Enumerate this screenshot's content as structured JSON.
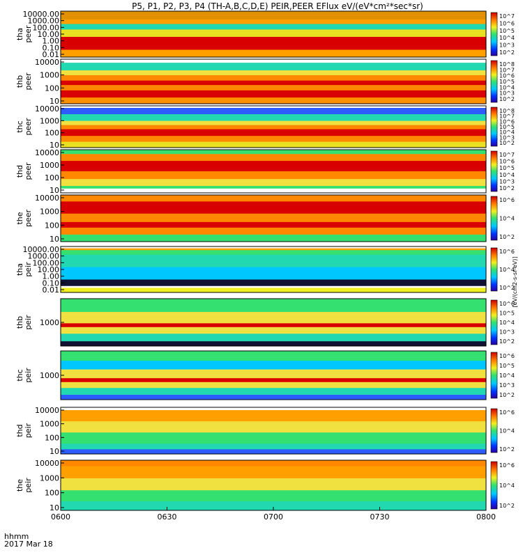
{
  "chart_data": {
    "type": "heatmap",
    "title": "P5, P1, P2, P3, P4 (TH-A,B,C,D,E) PEIR,PEER EFlux eV/(eV*cm²*sec*sr)",
    "x_tick_labels": [
      "0600",
      "0630",
      "0700",
      "0730",
      "0800"
    ],
    "x_label_line1": "hhmm",
    "x_label_line2": "2017 Mar 18",
    "colorbar_label": "[eV/(cm2-s-sr-eV)]",
    "panels": [
      {
        "probe": "tha",
        "species": "peer",
        "y_ticks": [
          "10000.00",
          "1000.00",
          "100.00",
          "10.00",
          "1.00",
          "0.10",
          "0.01"
        ],
        "colorbar_ticks": [
          "10^7",
          "10^6",
          "10^5",
          "10^4",
          "10^3",
          "10^2"
        ]
      },
      {
        "probe": "thb",
        "species": "peer",
        "y_ticks": [
          "10000",
          "1000",
          "100",
          "10"
        ],
        "colorbar_ticks": [
          "10^8",
          "10^7",
          "10^6",
          "10^5",
          "10^4",
          "10^3",
          "10^2"
        ]
      },
      {
        "probe": "thc",
        "species": "peer",
        "y_ticks": [
          "10000",
          "1000",
          "100",
          "10"
        ],
        "colorbar_ticks": [
          "10^8",
          "10^7",
          "10^6",
          "10^5",
          "10^4",
          "10^3",
          "10^2"
        ]
      },
      {
        "probe": "thd",
        "species": "peer",
        "y_ticks": [
          "10000",
          "1000",
          "100",
          "10"
        ],
        "colorbar_ticks": [
          "10^7",
          "10^6",
          "10^5",
          "10^4",
          "10^3",
          "10^2"
        ]
      },
      {
        "probe": "the",
        "species": "peer",
        "y_ticks": [
          "10000",
          "1000",
          "100",
          "10"
        ],
        "colorbar_ticks": [
          "10^6",
          "10^4",
          "10^2"
        ]
      },
      {
        "probe": "tha",
        "species": "peir",
        "y_ticks": [
          "10000.00",
          "1000.00",
          "100.00",
          "10.00",
          "1.00",
          "0.10",
          "0.01"
        ],
        "colorbar_ticks": [
          "10^6",
          "10^4",
          "10^2"
        ]
      },
      {
        "probe": "thb",
        "species": "peir",
        "y_ticks": [
          "1000"
        ],
        "colorbar_ticks": [
          "10^6",
          "10^5",
          "10^4",
          "10^3",
          "10^2"
        ]
      },
      {
        "probe": "thc",
        "species": "peir",
        "y_ticks": [
          "1000"
        ],
        "colorbar_ticks": [
          "10^6",
          "10^5",
          "10^4",
          "10^3",
          "10^2"
        ]
      },
      {
        "probe": "thd",
        "species": "peir",
        "y_ticks": [
          "10000",
          "1000",
          "100",
          "10"
        ],
        "colorbar_ticks": [
          "10^6",
          "10^4",
          "10^2"
        ]
      },
      {
        "probe": "the",
        "species": "peir",
        "y_ticks": [
          "10000",
          "1000",
          "100",
          "10"
        ],
        "colorbar_ticks": [
          "10^6",
          "10^4",
          "10^2"
        ]
      }
    ]
  }
}
